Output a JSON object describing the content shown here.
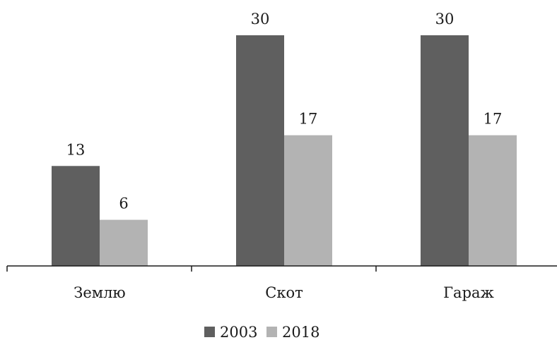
{
  "chart_data": {
    "type": "bar",
    "categories": [
      "Землю",
      "Скот",
      "Гараж"
    ],
    "series": [
      {
        "name": "2003",
        "values": [
          13,
          30,
          30
        ],
        "color": "#5f5f5f"
      },
      {
        "name": "2018",
        "values": [
          6,
          17,
          17
        ],
        "color": "#b3b3b3"
      }
    ],
    "title": "",
    "xlabel": "",
    "ylabel": "",
    "ylim": [
      0,
      30
    ],
    "grid": false,
    "legend": "bottom"
  }
}
